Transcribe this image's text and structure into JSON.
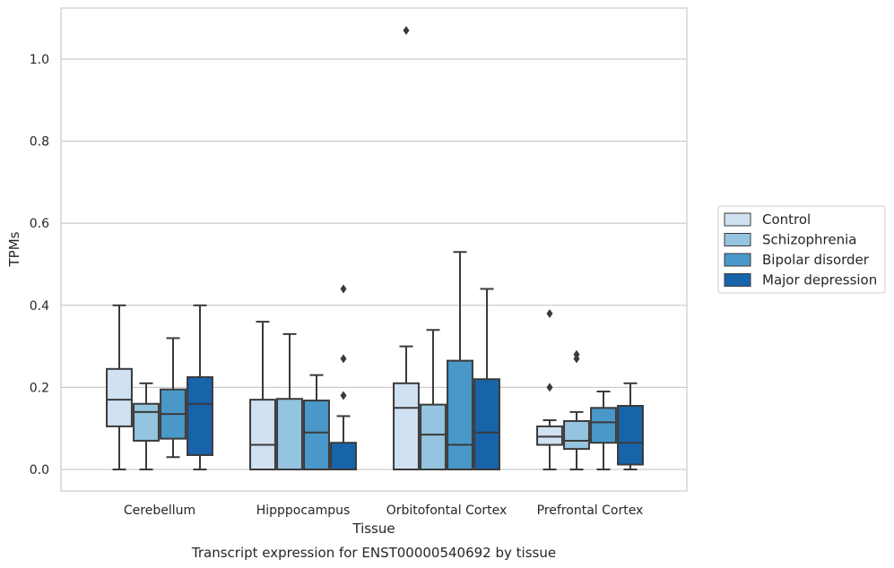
{
  "chart_data": {
    "type": "box",
    "title": "",
    "caption": "Transcript expression for ENST00000540692 by tissue",
    "xlabel": "Tissue",
    "ylabel": "TPMs",
    "ylim": [
      -0.05,
      1.13
    ],
    "yticks": [
      "0.0",
      "0.2",
      "0.4",
      "0.6",
      "0.8",
      "1.0"
    ],
    "grid": true,
    "legend_position": "right",
    "categories": [
      "Cerebellum",
      "Hipppocampus",
      "Orbitofontal Cortex",
      "Prefrontal Cortex"
    ],
    "series": [
      {
        "name": "Control",
        "color": "#d0e1f2",
        "boxes": [
          {
            "min": 0.0,
            "q1": 0.105,
            "median": 0.17,
            "q3": 0.245,
            "max": 0.4,
            "outliers": []
          },
          {
            "min": 0.0,
            "q1": 0.0,
            "median": 0.06,
            "q3": 0.17,
            "max": 0.36,
            "outliers": []
          },
          {
            "min": 0.0,
            "q1": 0.0,
            "median": 0.15,
            "q3": 0.21,
            "max": 0.3,
            "outliers": [
              1.07
            ]
          },
          {
            "min": 0.0,
            "q1": 0.06,
            "median": 0.08,
            "q3": 0.105,
            "max": 0.12,
            "outliers": [
              0.2,
              0.38
            ]
          }
        ]
      },
      {
        "name": "Schizophrenia",
        "color": "#94c4df",
        "boxes": [
          {
            "min": 0.0,
            "q1": 0.07,
            "median": 0.14,
            "q3": 0.16,
            "max": 0.21,
            "outliers": []
          },
          {
            "min": 0.0,
            "q1": 0.0,
            "median": 0.0,
            "q3": 0.172,
            "max": 0.33,
            "outliers": []
          },
          {
            "min": 0.0,
            "q1": 0.0,
            "median": 0.085,
            "q3": 0.158,
            "max": 0.34,
            "outliers": []
          },
          {
            "min": 0.0,
            "q1": 0.05,
            "median": 0.07,
            "q3": 0.118,
            "max": 0.14,
            "outliers": [
              0.27,
              0.28
            ]
          }
        ]
      },
      {
        "name": "Bipolar disorder",
        "color": "#4a98c9",
        "boxes": [
          {
            "min": 0.03,
            "q1": 0.075,
            "median": 0.135,
            "q3": 0.195,
            "max": 0.32,
            "outliers": []
          },
          {
            "min": 0.0,
            "q1": 0.0,
            "median": 0.09,
            "q3": 0.168,
            "max": 0.23,
            "outliers": []
          },
          {
            "min": 0.0,
            "q1": 0.0,
            "median": 0.06,
            "q3": 0.265,
            "max": 0.53,
            "outliers": []
          },
          {
            "min": 0.0,
            "q1": 0.065,
            "median": 0.115,
            "q3": 0.15,
            "max": 0.19,
            "outliers": []
          }
        ]
      },
      {
        "name": "Major depression",
        "color": "#1764ab",
        "boxes": [
          {
            "min": 0.0,
            "q1": 0.035,
            "median": 0.16,
            "q3": 0.225,
            "max": 0.4,
            "outliers": []
          },
          {
            "min": 0.0,
            "q1": 0.0,
            "median": 0.0,
            "q3": 0.065,
            "max": 0.13,
            "outliers": [
              0.18,
              0.27,
              0.44
            ]
          },
          {
            "min": 0.0,
            "q1": 0.0,
            "median": 0.09,
            "q3": 0.22,
            "max": 0.44,
            "outliers": []
          },
          {
            "min": 0.0,
            "q1": 0.012,
            "median": 0.065,
            "q3": 0.155,
            "max": 0.21,
            "outliers": []
          }
        ]
      }
    ]
  }
}
